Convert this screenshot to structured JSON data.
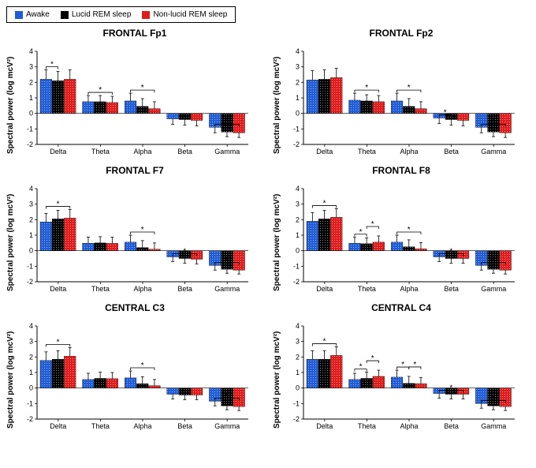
{
  "legend": {
    "items": [
      {
        "label": "Awake",
        "color": "#1f5cd6"
      },
      {
        "label": "Lucid REM sleep",
        "color": "#000000"
      },
      {
        "label": "Non-lucid REM sleep",
        "color": "#e01b1b"
      }
    ],
    "border_color": "#000000",
    "fontsize": 10
  },
  "axis": {
    "ylim": [
      -2,
      4
    ],
    "yticks": [
      -2,
      -1,
      0,
      1,
      2,
      3,
      4
    ],
    "ylabel": "Spectral power (log mcV²)",
    "categories": [
      "Delta",
      "Theta",
      "Alpha",
      "Beta",
      "Gamma"
    ],
    "label_fontsize": 10,
    "tick_fontsize": 9
  },
  "styling": {
    "background_color": "#ffffff",
    "axis_color": "#000000",
    "bar_width": 0.8,
    "hatch": "dots",
    "title_fontsize": 12
  },
  "panels": [
    {
      "title": "FRONTAL Fp1",
      "series": {
        "Awake": [
          2.2,
          0.75,
          0.8,
          -0.35,
          -0.9
        ],
        "Lucid REM sleep": [
          2.1,
          0.75,
          0.45,
          -0.4,
          -1.2
        ],
        "Non-lucid REM sleep": [
          2.2,
          0.7,
          0.3,
          -0.45,
          -1.25
        ]
      },
      "errors": {
        "Awake": [
          0.6,
          0.4,
          0.5,
          0.35,
          0.35
        ],
        "Lucid REM sleep": [
          0.6,
          0.4,
          0.5,
          0.35,
          0.3
        ],
        "Non-lucid REM sleep": [
          0.6,
          0.4,
          0.45,
          0.35,
          0.3
        ]
      },
      "sig": [
        {
          "band": "Delta",
          "groups": [
            0,
            1
          ]
        },
        {
          "band": "Theta",
          "groups": [
            0,
            2
          ]
        },
        {
          "band": "Alpha",
          "groups": [
            0,
            2
          ]
        },
        {
          "band": "Gamma",
          "groups": [
            0,
            2
          ]
        }
      ]
    },
    {
      "title": "FRONTAL Fp2",
      "series": {
        "Awake": [
          2.15,
          0.85,
          0.8,
          -0.3,
          -0.9
        ],
        "Lucid REM sleep": [
          2.2,
          0.8,
          0.45,
          -0.4,
          -1.2
        ],
        "Non-lucid REM sleep": [
          2.3,
          0.75,
          0.3,
          -0.45,
          -1.25
        ]
      },
      "errors": {
        "Awake": [
          0.6,
          0.45,
          0.5,
          0.35,
          0.35
        ],
        "Lucid REM sleep": [
          0.6,
          0.4,
          0.5,
          0.35,
          0.3
        ],
        "Non-lucid REM sleep": [
          0.6,
          0.4,
          0.45,
          0.35,
          0.3
        ]
      },
      "sig": [
        {
          "band": "Theta",
          "groups": [
            0,
            2
          ]
        },
        {
          "band": "Alpha",
          "groups": [
            0,
            2
          ]
        },
        {
          "band": "Beta",
          "groups": [
            0,
            1
          ]
        },
        {
          "band": "Gamma",
          "groups": [
            0,
            2
          ]
        }
      ]
    },
    {
      "title": "FRONTAL F7",
      "series": {
        "Awake": [
          1.85,
          0.48,
          0.55,
          -0.4,
          -0.95
        ],
        "Lucid REM sleep": [
          2.05,
          0.5,
          0.2,
          -0.5,
          -1.2
        ],
        "Non-lucid REM sleep": [
          2.1,
          0.47,
          0.1,
          -0.55,
          -1.25
        ]
      },
      "errors": {
        "Awake": [
          0.55,
          0.4,
          0.45,
          0.3,
          0.3
        ],
        "Lucid REM sleep": [
          0.55,
          0.4,
          0.45,
          0.3,
          0.25
        ],
        "Non-lucid REM sleep": [
          0.55,
          0.4,
          0.4,
          0.3,
          0.25
        ]
      },
      "sig": [
        {
          "band": "Delta",
          "groups": [
            0,
            2
          ]
        },
        {
          "band": "Alpha",
          "groups": [
            0,
            2
          ]
        },
        {
          "band": "Beta",
          "groups": [
            0,
            2
          ]
        },
        {
          "band": "Gamma",
          "groups": [
            0,
            2
          ]
        }
      ]
    },
    {
      "title": "FRONTAL F8",
      "series": {
        "Awake": [
          1.9,
          0.48,
          0.55,
          -0.4,
          -0.95
        ],
        "Lucid REM sleep": [
          2.05,
          0.45,
          0.25,
          -0.5,
          -1.2
        ],
        "Non-lucid REM sleep": [
          2.15,
          0.55,
          0.12,
          -0.5,
          -1.25
        ]
      },
      "errors": {
        "Awake": [
          0.55,
          0.38,
          0.45,
          0.3,
          0.3
        ],
        "Lucid REM sleep": [
          0.55,
          0.38,
          0.45,
          0.3,
          0.25
        ],
        "Non-lucid REM sleep": [
          0.55,
          0.4,
          0.4,
          0.3,
          0.25
        ]
      },
      "sig": [
        {
          "band": "Delta",
          "groups": [
            0,
            2
          ]
        },
        {
          "band": "Theta",
          "groups": [
            0,
            1
          ]
        },
        {
          "band": "Theta",
          "groups": [
            1,
            2
          ]
        },
        {
          "band": "Alpha",
          "groups": [
            0,
            2
          ]
        },
        {
          "band": "Beta",
          "groups": [
            0,
            2
          ]
        },
        {
          "band": "Gamma",
          "groups": [
            0,
            2
          ]
        }
      ]
    },
    {
      "title": "CENTRAL C3",
      "series": {
        "Awake": [
          1.78,
          0.55,
          0.65,
          -0.4,
          -0.85
        ],
        "Lucid REM sleep": [
          1.85,
          0.62,
          0.28,
          -0.45,
          -1.15
        ],
        "Non-lucid REM sleep": [
          2.05,
          0.6,
          0.15,
          -0.45,
          -1.2
        ]
      },
      "errors": {
        "Awake": [
          0.55,
          0.4,
          0.45,
          0.3,
          0.3
        ],
        "Lucid REM sleep": [
          0.55,
          0.4,
          0.45,
          0.3,
          0.25
        ],
        "Non-lucid REM sleep": [
          0.55,
          0.4,
          0.4,
          0.3,
          0.25
        ]
      },
      "sig": [
        {
          "band": "Delta",
          "groups": [
            0,
            2
          ]
        },
        {
          "band": "Alpha",
          "groups": [
            0,
            2
          ]
        },
        {
          "band": "Gamma",
          "groups": [
            0,
            2
          ]
        }
      ]
    },
    {
      "title": "CENTRAL C4",
      "series": {
        "Awake": [
          1.85,
          0.55,
          0.7,
          -0.35,
          -1.0
        ],
        "Lucid REM sleep": [
          1.85,
          0.62,
          0.3,
          -0.4,
          -1.15
        ],
        "Non-lucid REM sleep": [
          2.1,
          0.75,
          0.28,
          -0.4,
          -1.2
        ]
      },
      "errors": {
        "Awake": [
          0.55,
          0.4,
          0.45,
          0.3,
          0.3
        ],
        "Lucid REM sleep": [
          0.55,
          0.4,
          0.45,
          0.3,
          0.25
        ],
        "Non-lucid REM sleep": [
          0.55,
          0.4,
          0.4,
          0.3,
          0.25
        ]
      },
      "sig": [
        {
          "band": "Delta",
          "groups": [
            0,
            2
          ]
        },
        {
          "band": "Theta",
          "groups": [
            0,
            1
          ]
        },
        {
          "band": "Theta",
          "groups": [
            1,
            2
          ]
        },
        {
          "band": "Alpha",
          "groups": [
            0,
            1
          ]
        },
        {
          "band": "Alpha",
          "groups": [
            1,
            2
          ]
        },
        {
          "band": "Beta",
          "groups": [
            0,
            2
          ]
        },
        {
          "band": "Gamma",
          "groups": [
            0,
            2
          ]
        }
      ]
    }
  ]
}
